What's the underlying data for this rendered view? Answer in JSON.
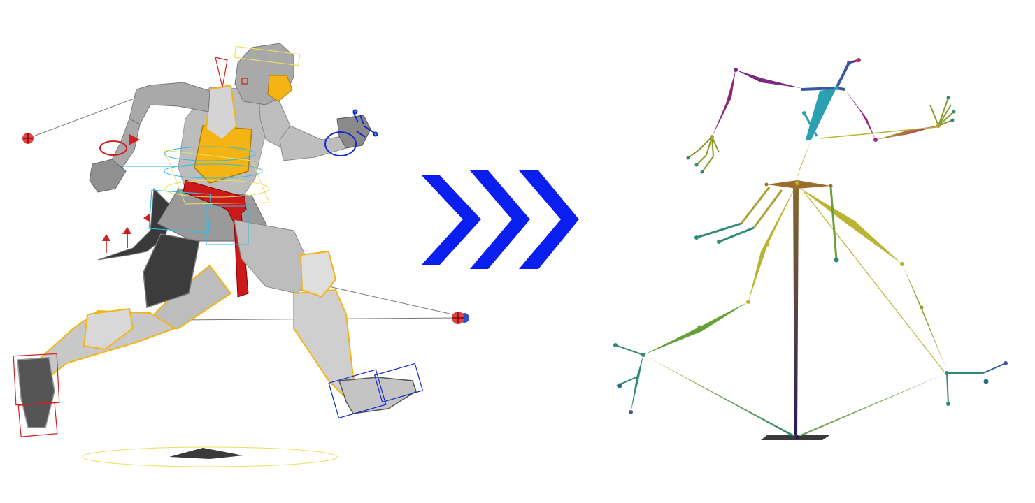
{
  "figure": {
    "left_panel": {
      "subject": "rigged-character-model"
    },
    "right_panel": {
      "subject": "bone-skeleton"
    },
    "transition": {
      "glyph": "chevron-icon",
      "count": 3,
      "color": "#0a1ef0"
    }
  },
  "colors": {
    "body_gray": "#a9a9a9",
    "armor_dark": "#3c3c3c",
    "gold_trim": "#f3b414",
    "sash_red": "#cc1a1a",
    "rig_red": "#d02020",
    "rig_blue": "#1428d0",
    "rig_cyan": "#38b8e0",
    "rig_yellow": "#e8e060",
    "bone_yellow": "#b9b431",
    "bone_olive": "#8f9a2a",
    "bone_teal": "#2f8a78",
    "bone_cyan": "#2aa0b0",
    "bone_purple": "#7a2a80",
    "bone_navy": "#2a1a5a"
  }
}
